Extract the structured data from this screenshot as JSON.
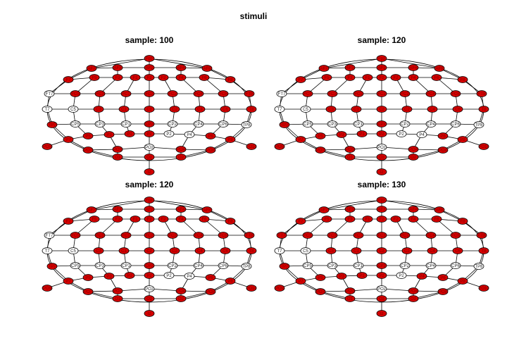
{
  "title": "stimuli",
  "colors": {
    "active": "#d40000",
    "inactive": "#ffffff",
    "edge": "#000000"
  },
  "panels": [
    {
      "title": "sample: 100",
      "inactive": [
        "FT7",
        "T7",
        "C5",
        "CP5",
        "CP3",
        "CP1",
        "CP2",
        "CP4",
        "CP6",
        "TP8",
        "P2",
        "P4",
        "POz"
      ]
    },
    {
      "title": "sample: 120",
      "inactive": [
        "FT7",
        "T7",
        "C5",
        "CP5",
        "CP3",
        "CP1",
        "CP2",
        "CP4",
        "CP6",
        "TP8",
        "P2",
        "P4",
        "POz"
      ]
    },
    {
      "title": "sample: 120",
      "inactive": [
        "FT7",
        "T7",
        "C5",
        "CP5",
        "CP3",
        "CP1",
        "CP2",
        "CP4",
        "CP6",
        "TP8",
        "P2",
        "P4",
        "POz"
      ]
    },
    {
      "title": "sample: 130",
      "inactive": [
        "T7",
        "C5",
        "CP5",
        "CP3",
        "CP1",
        "CP2",
        "CP4",
        "CP6",
        "TP8",
        "P2",
        "POz"
      ]
    }
  ]
}
